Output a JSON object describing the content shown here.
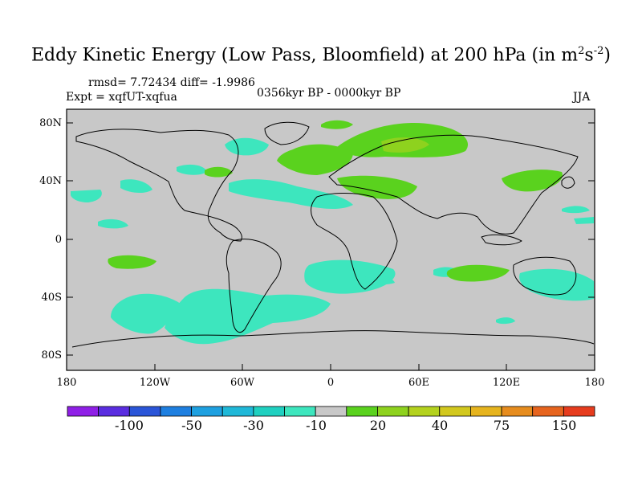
{
  "title": {
    "main": "Eddy Kinetic Energy (Low Pass, Bloomfield) at 200 hPa (in m",
    "sup1": "2",
    "mid": "s",
    "sup2": "-2",
    "end": ")"
  },
  "stats": "rmsd= 7.72434 diff= -1.9986",
  "experiment": "Expt = xqfUT-xqfua",
  "period": "0356kyr BP - 0000kyr BP",
  "season": "JJA",
  "y_ticks": [
    "80N",
    "40N",
    "0",
    "40S",
    "80S"
  ],
  "x_ticks": [
    "180",
    "120W",
    "60W",
    "0",
    "60E",
    "120E",
    "180"
  ],
  "colorbar": {
    "colors": [
      "#8f1fe6",
      "#5a2de0",
      "#2a55d8",
      "#1e7fe0",
      "#1ea0e0",
      "#1fb8d8",
      "#1fd0c0",
      "#3de6be",
      "#c8c8c8",
      "#5ad21e",
      "#8ed21e",
      "#b4d21e",
      "#d2c81e",
      "#e6b41e",
      "#e68c1e",
      "#e6641e",
      "#e63c1e"
    ],
    "labels": [
      "-100",
      "-50",
      "-30",
      "-10",
      "20",
      "40",
      "75",
      "150"
    ]
  },
  "colors": {
    "background_field": "#c8c8c8",
    "cyan_negative": "#3de6be",
    "green_positive": "#5ad21e",
    "lime_positive": "#8ed21e",
    "coast": "#000000"
  }
}
